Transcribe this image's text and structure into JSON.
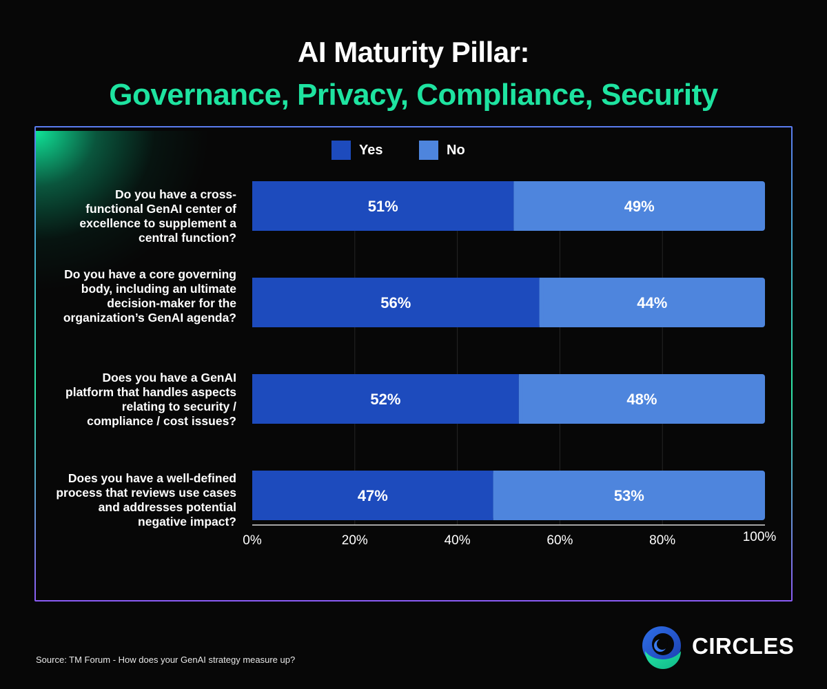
{
  "title": {
    "line1": "AI Maturity Pillar:",
    "line2": "Governance, Privacy, Compliance, Security"
  },
  "legend": [
    {
      "label": "Yes",
      "color": "#1d4bbd"
    },
    {
      "label": "No",
      "color": "#4e85dd"
    }
  ],
  "questions": [
    {
      "lines": [
        "Do you have a cross-",
        "functional GenAI center of",
        "excellence to supplement a",
        "central function?"
      ]
    },
    {
      "lines": [
        "Do you have a core governing",
        "body, including an ultimate",
        "decision-maker for the",
        "organization’s GenAI agenda?"
      ]
    },
    {
      "lines": [
        "Does you have a GenAI",
        "platform that handles aspects",
        "relating to security /",
        "compliance / cost issues?"
      ]
    },
    {
      "lines": [
        "Does you have a well-defined",
        "process that reviews use cases",
        "and addresses potential",
        "negative impact?"
      ]
    }
  ],
  "chart_data": {
    "type": "bar",
    "orientation": "horizontal",
    "stacked": true,
    "categories": [
      "Do you have a cross-functional GenAI center of excellence to supplement a central function?",
      "Do you have a core governing body, including an ultimate decision-maker for the organization’s GenAI agenda?",
      "Does you have a GenAI platform that handles aspects relating to security / compliance / cost issues?",
      "Does you have a well-defined process that reviews use cases and addresses potential negative impact?"
    ],
    "series": [
      {
        "name": "Yes",
        "values": [
          51,
          56,
          52,
          47
        ],
        "labels": [
          "51%",
          "56%",
          "52%",
          "47%"
        ],
        "color": "#1d4bbd"
      },
      {
        "name": "No",
        "values": [
          49,
          44,
          48,
          53
        ],
        "labels": [
          "49%",
          "44%",
          "48%",
          "53%"
        ],
        "color": "#4e85dd"
      }
    ],
    "xlim": [
      0,
      100
    ],
    "x_ticks": [
      "0%",
      "20%",
      "40%",
      "60%",
      "80%",
      "100%"
    ],
    "grid": true,
    "legend_position": "top-center"
  },
  "source": "Source: TM Forum - How does your GenAI strategy measure up?",
  "logo": {
    "text": "CIRCLES"
  }
}
